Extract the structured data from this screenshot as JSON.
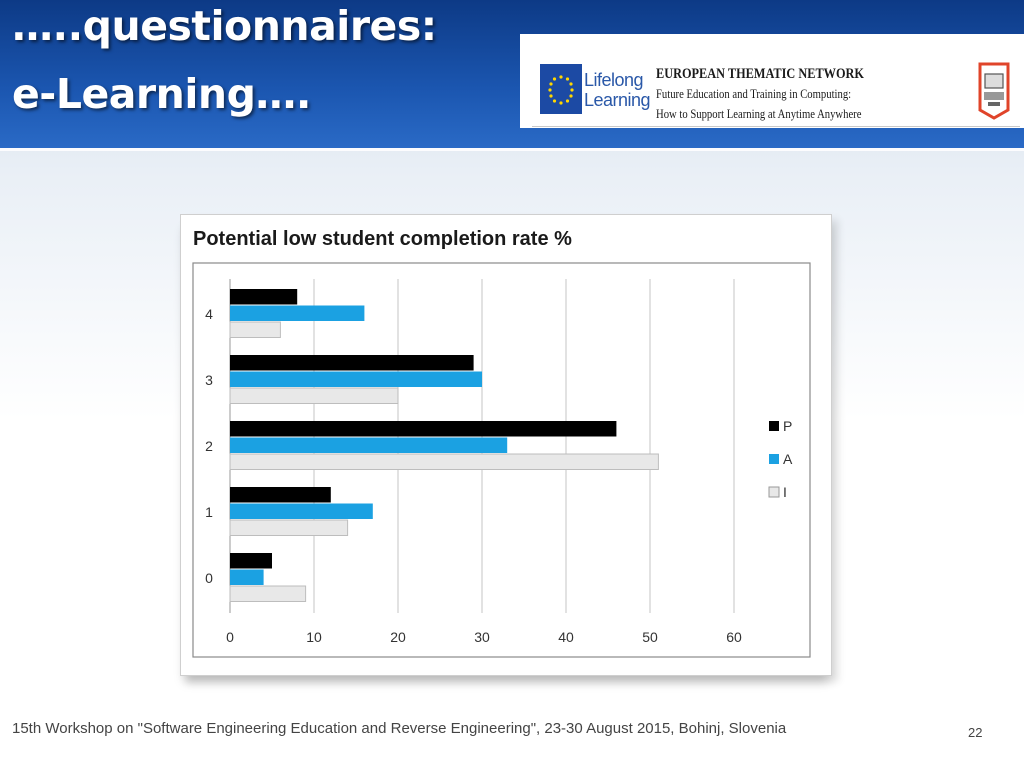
{
  "slide": {
    "title_line1": "…..questionnaires:",
    "title_line2": "e-Learning….",
    "footer": "15th Workshop on \"Software Engineering Education and Reverse Engineering\", 23-30 August 2015, Bohinj, Slovenia",
    "page_number": "22"
  },
  "banner": {
    "program_line1": "Lifelong",
    "program_line2": "Learning",
    "network_title": "EUROPEAN THEMATIC NETWORK",
    "network_line2": "Future Education and Training in Computing:",
    "network_line3": "How to Support Learning at Anytime Anywhere",
    "brand_colors": {
      "eu_blue": "#1c4aa4",
      "star_yellow": "#ffd700",
      "logo_red": "#e0442a"
    }
  },
  "chart_data": {
    "type": "bar",
    "orientation": "horizontal",
    "title": "Potential low student completion rate %",
    "categories": [
      "0",
      "1",
      "2",
      "3",
      "4"
    ],
    "series": [
      {
        "name": "P",
        "color": "#000000",
        "values": [
          5,
          12,
          46,
          29,
          8
        ]
      },
      {
        "name": "A",
        "color": "#1ba1e2",
        "values": [
          4,
          17,
          33,
          30,
          16
        ]
      },
      {
        "name": "I",
        "color": "#e8e8e8",
        "values": [
          9,
          14,
          51,
          20,
          6
        ]
      }
    ],
    "xlim": [
      0,
      60
    ],
    "xticks": [
      "0",
      "10",
      "20",
      "30",
      "40",
      "50",
      "60"
    ],
    "grid": true,
    "legend_position": "right"
  }
}
